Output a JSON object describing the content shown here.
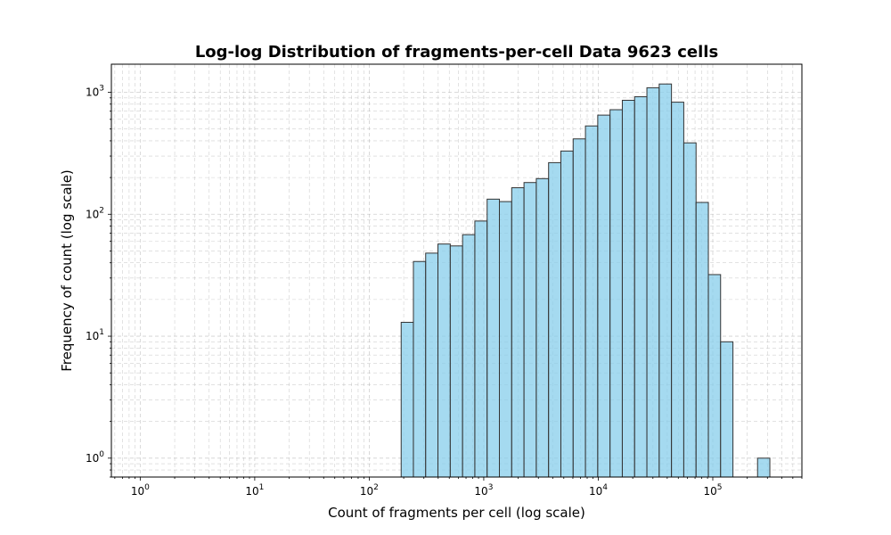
{
  "chart_data": {
    "type": "bar",
    "title": "Log-log Distribution of fragments-per-cell Data 9623 cells",
    "xlabel": "Count of fragments per cell (log scale)",
    "ylabel": "Frequency of count (log scale)",
    "x_scale": "log",
    "y_scale": "log",
    "xlim": [
      0.56,
      600000
    ],
    "ylim": [
      0.7,
      1700
    ],
    "grid": true,
    "bar_color": "#87ceeb",
    "bar_edge_color": "#333333",
    "x_ticks": [
      {
        "base": "10",
        "exp": "0",
        "value": 1
      },
      {
        "base": "10",
        "exp": "1",
        "value": 10
      },
      {
        "base": "10",
        "exp": "2",
        "value": 100
      },
      {
        "base": "10",
        "exp": "3",
        "value": 1000
      },
      {
        "base": "10",
        "exp": "4",
        "value": 10000
      },
      {
        "base": "10",
        "exp": "5",
        "value": 100000
      }
    ],
    "y_ticks": [
      {
        "base": "10",
        "exp": "0",
        "value": 1
      },
      {
        "base": "10",
        "exp": "1",
        "value": 10
      },
      {
        "base": "10",
        "exp": "2",
        "value": 100
      },
      {
        "base": "10",
        "exp": "3",
        "value": 1000
      }
    ],
    "bin_edges": [
      190,
      243,
      311,
      398,
      510,
      653,
      836,
      1070,
      1370,
      1754,
      2246,
      2876,
      3682,
      4714,
      6035,
      7727,
      9893,
      12667,
      16218,
      20765,
      26587,
      34040,
      43583,
      55800,
      71450,
      91500,
      117000,
      150000,
      192000,
      246000,
      315000
    ],
    "values": [
      13,
      41,
      48,
      57,
      55,
      68,
      88,
      133,
      127,
      165,
      182,
      196,
      265,
      330,
      415,
      530,
      650,
      720,
      860,
      920,
      1090,
      1170,
      830,
      385,
      125,
      32,
      9,
      0,
      0,
      1
    ]
  }
}
